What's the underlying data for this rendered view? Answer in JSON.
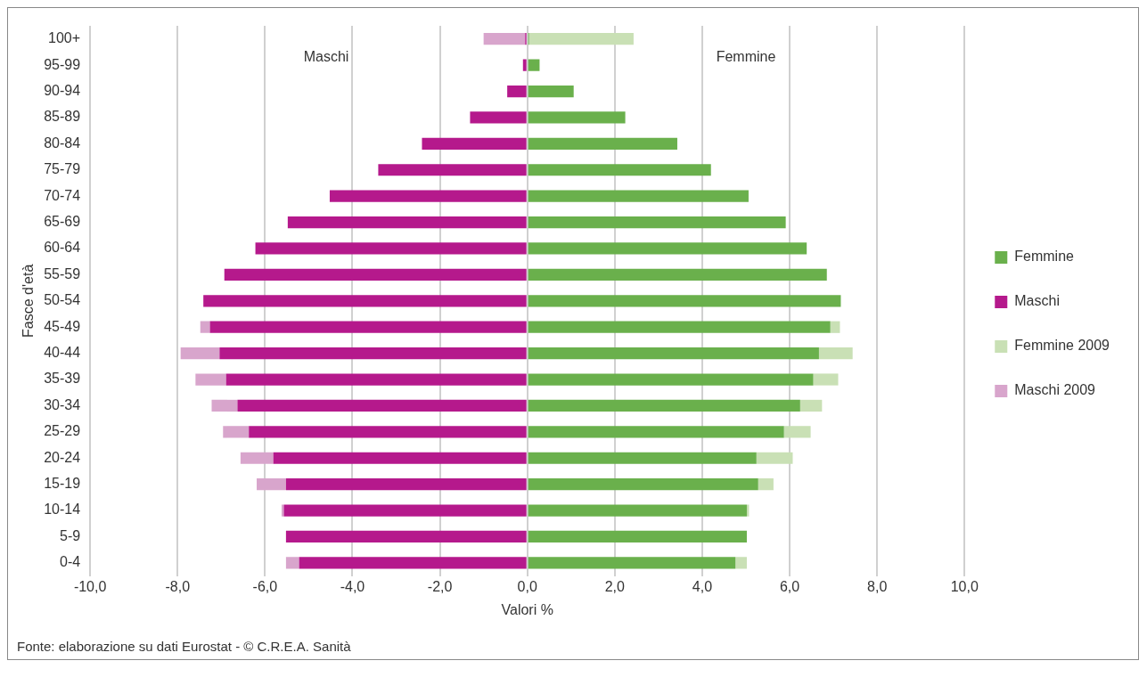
{
  "chart_data": {
    "type": "bar",
    "orientation": "horizontal",
    "stacked": true,
    "xlabel": "Valori %",
    "ylabel": "Fasce d'età",
    "categories": [
      "100+",
      "95-99",
      "90-94",
      "85-89",
      "80-84",
      "75-79",
      "70-74",
      "65-69",
      "60-64",
      "55-59",
      "50-54",
      "45-49",
      "40-44",
      "35-39",
      "30-34",
      "25-29",
      "20-24",
      "15-19",
      "10-14",
      "5-9",
      "0-4"
    ],
    "series": [
      {
        "name": "Femmine",
        "color": "#6ab04c",
        "values": [
          0.04,
          0.28,
          1.06,
          2.24,
          3.43,
          4.2,
          5.06,
          5.91,
          6.39,
          6.85,
          7.17,
          6.93,
          6.67,
          6.54,
          6.24,
          5.87,
          5.24,
          5.28,
          5.02,
          5.02,
          4.76
        ]
      },
      {
        "name": "Maschi",
        "color": "#b5198c",
        "values": [
          -0.05,
          -0.1,
          -0.46,
          -1.31,
          -2.41,
          -3.41,
          -4.52,
          -5.48,
          -6.22,
          -6.93,
          -7.41,
          -7.26,
          -7.04,
          -6.89,
          -6.63,
          -6.37,
          -5.81,
          -5.52,
          -5.57,
          -5.52,
          -5.22
        ]
      },
      {
        "name": "Femmine 2009",
        "color": "#c9e0b5",
        "values": [
          2.39,
          null,
          null,
          null,
          null,
          null,
          null,
          null,
          null,
          null,
          null,
          0.22,
          0.77,
          0.57,
          0.5,
          0.61,
          0.83,
          0.35,
          0.05,
          null,
          0.26
        ]
      },
      {
        "name": "Maschi 2009",
        "color": "#d8a5cc",
        "values": [
          -0.95,
          null,
          null,
          null,
          null,
          null,
          null,
          null,
          null,
          null,
          null,
          -0.22,
          -0.89,
          -0.7,
          -0.59,
          -0.59,
          -0.75,
          -0.67,
          -0.05,
          null,
          -0.3
        ]
      }
    ],
    "xlim": [
      -10,
      10
    ],
    "xticks": [
      {
        "value": -10,
        "label": "-10,0"
      },
      {
        "value": -8,
        "label": "-8,0"
      },
      {
        "value": -6,
        "label": "-6,0"
      },
      {
        "value": -4,
        "label": "-4,0"
      },
      {
        "value": -2,
        "label": "-2,0"
      },
      {
        "value": 0,
        "label": "0,0"
      },
      {
        "value": 2,
        "label": "2,0"
      },
      {
        "value": 4,
        "label": "4,0"
      },
      {
        "value": 6,
        "label": "6,0"
      },
      {
        "value": 8,
        "label": "8,0"
      },
      {
        "value": 10,
        "label": "10,0"
      }
    ],
    "grid": "x",
    "legend": "right",
    "annotations": [
      "Maschi",
      "Femmine",
      "Fonte: elaborazione su dati Eurostat - © C.R.E.A. Sanità"
    ]
  }
}
